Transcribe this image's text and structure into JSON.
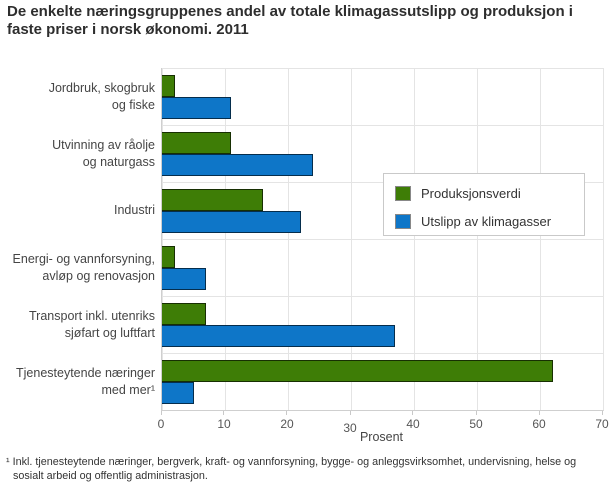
{
  "title": "De enkelte næringsgruppenes andel av totale klimagassutslipp og produksjon i\nfaste priser i norsk økonomi. 2011",
  "footnote": "¹ Inkl. tjenesteytende næringer, bergverk, kraft- og vannforsyning, bygge- og anleggsvirksomhet, undervisning, helse og\nsosialt arbeid og offentlig administrasjon.",
  "chart_data": {
    "type": "bar",
    "orientation": "horizontal",
    "title": "De enkelte næringsgruppenes andel av totale klimagassutslipp og produksjon i faste priser i norsk økonomi. 2011",
    "categories": [
      "Jordbruk, skogbruk\nog fiske",
      "Utvinning av råolje\nog naturgass",
      "Industri",
      "Energi- og vannforsyning,\navløp og renovasjon",
      "Transport inkl. utenriks\nsjøfart og luftfart",
      "Tjenesteytende næringer\nmed mer¹"
    ],
    "series": [
      {
        "key": "produksjonsverdi",
        "name": "Produksjonsverdi",
        "color": "#3e7d06",
        "values": [
          2,
          11,
          16,
          2,
          7,
          62
        ]
      },
      {
        "key": "utslipp-av-klimagasser",
        "name": "Utslipp av klimagasser",
        "color": "#0e76c8",
        "values": [
          11,
          24,
          22,
          7,
          37,
          5
        ]
      }
    ],
    "xlabel": "Prosent",
    "xlim": [
      0,
      70
    ],
    "ticks": [
      {
        "label": "0"
      },
      {
        "label": "10"
      },
      {
        "label": "20"
      },
      {
        "label": "30",
        "dy": 4
      },
      {
        "label": "40"
      },
      {
        "label": "50"
      },
      {
        "label": "60"
      },
      {
        "label": "70"
      }
    ],
    "grid": true,
    "legend_position": "inside-right"
  }
}
